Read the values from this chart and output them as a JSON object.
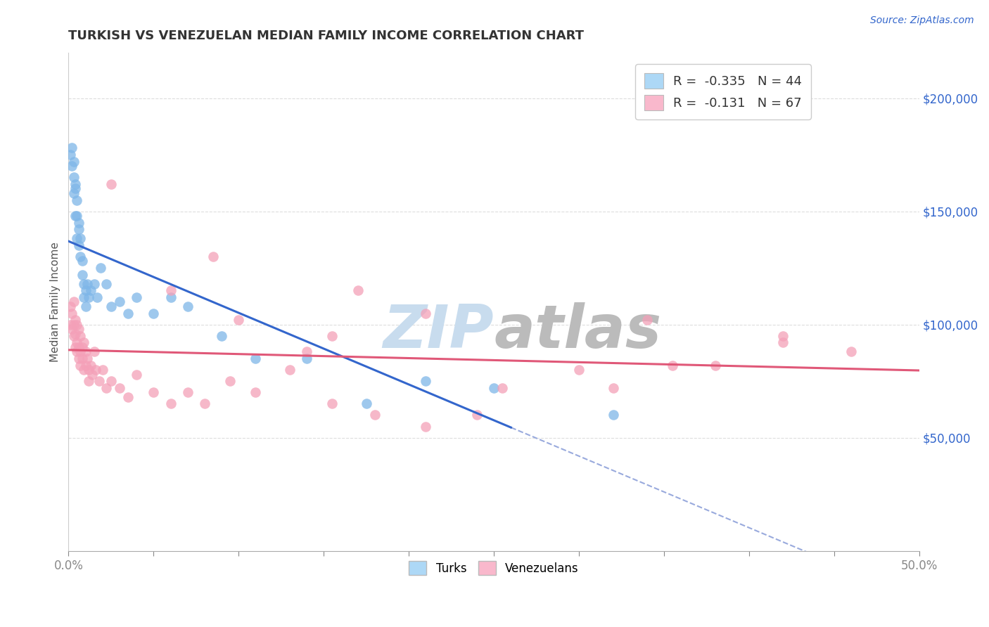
{
  "title": "TURKISH VS VENEZUELAN MEDIAN FAMILY INCOME CORRELATION CHART",
  "source": "Source: ZipAtlas.com",
  "ylabel": "Median Family Income",
  "y_tick_labels": [
    "$50,000",
    "$100,000",
    "$150,000",
    "$200,000"
  ],
  "y_tick_values": [
    50000,
    100000,
    150000,
    200000
  ],
  "x_range": [
    0.0,
    0.5
  ],
  "y_range": [
    0,
    220000
  ],
  "turks_R": -0.335,
  "turks_N": 44,
  "venezuelans_R": -0.131,
  "venezuelans_N": 67,
  "turks_color": "#7EB6E8",
  "venezuelans_color": "#F4A0B8",
  "turks_line_color": "#3366CC",
  "venezuelans_line_color": "#E05878",
  "dashed_line_color": "#99AADD",
  "background_color": "#FFFFFF",
  "watermark_zip": "ZIP",
  "watermark_atlas": "atlas",
  "watermark_color_zip": "#C8DCEE",
  "watermark_color_atlas": "#BBBBBB",
  "legend_box_color_turks": "#ADD8F6",
  "legend_box_color_venezuelans": "#F9B8CC",
  "turks_x": [
    0.001,
    0.002,
    0.002,
    0.003,
    0.003,
    0.003,
    0.004,
    0.004,
    0.004,
    0.005,
    0.005,
    0.005,
    0.006,
    0.006,
    0.006,
    0.007,
    0.007,
    0.008,
    0.008,
    0.009,
    0.009,
    0.01,
    0.01,
    0.011,
    0.012,
    0.013,
    0.015,
    0.017,
    0.019,
    0.022,
    0.025,
    0.03,
    0.035,
    0.04,
    0.05,
    0.06,
    0.07,
    0.09,
    0.11,
    0.14,
    0.175,
    0.21,
    0.25,
    0.32
  ],
  "turks_y": [
    175000,
    170000,
    178000,
    165000,
    172000,
    158000,
    162000,
    148000,
    160000,
    155000,
    148000,
    138000,
    145000,
    135000,
    142000,
    138000,
    130000,
    128000,
    122000,
    118000,
    112000,
    115000,
    108000,
    118000,
    112000,
    115000,
    118000,
    112000,
    125000,
    118000,
    108000,
    110000,
    105000,
    112000,
    105000,
    112000,
    108000,
    95000,
    85000,
    85000,
    65000,
    75000,
    72000,
    60000
  ],
  "venezuelans_x": [
    0.001,
    0.001,
    0.002,
    0.002,
    0.003,
    0.003,
    0.003,
    0.004,
    0.004,
    0.004,
    0.005,
    0.005,
    0.005,
    0.006,
    0.006,
    0.006,
    0.007,
    0.007,
    0.007,
    0.008,
    0.008,
    0.009,
    0.009,
    0.01,
    0.01,
    0.011,
    0.012,
    0.012,
    0.013,
    0.014,
    0.015,
    0.016,
    0.018,
    0.02,
    0.022,
    0.025,
    0.03,
    0.035,
    0.04,
    0.05,
    0.06,
    0.07,
    0.08,
    0.095,
    0.11,
    0.13,
    0.155,
    0.18,
    0.21,
    0.24,
    0.025,
    0.17,
    0.21,
    0.34,
    0.38,
    0.42,
    0.46,
    0.085,
    0.155,
    0.355,
    0.06,
    0.255,
    0.1,
    0.14,
    0.3,
    0.42,
    0.32
  ],
  "venezuelans_y": [
    108000,
    100000,
    105000,
    98000,
    110000,
    100000,
    95000,
    102000,
    96000,
    90000,
    100000,
    92000,
    88000,
    98000,
    90000,
    85000,
    95000,
    88000,
    82000,
    90000,
    85000,
    92000,
    80000,
    88000,
    82000,
    85000,
    80000,
    75000,
    82000,
    78000,
    88000,
    80000,
    75000,
    80000,
    72000,
    75000,
    72000,
    68000,
    78000,
    70000,
    65000,
    70000,
    65000,
    75000,
    70000,
    80000,
    65000,
    60000,
    55000,
    60000,
    162000,
    115000,
    105000,
    102000,
    82000,
    95000,
    88000,
    130000,
    95000,
    82000,
    115000,
    72000,
    102000,
    88000,
    80000,
    92000,
    72000
  ],
  "turks_line_x_end": 0.26,
  "dashed_line_x_start": 0.26
}
